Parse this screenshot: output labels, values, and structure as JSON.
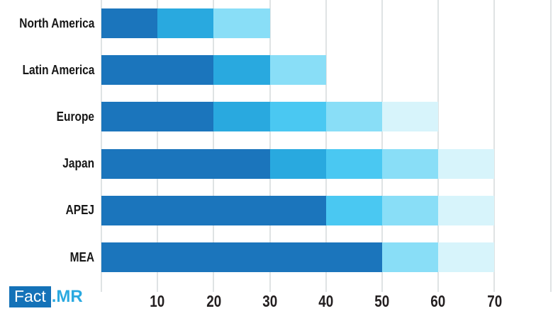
{
  "logo": {
    "brand_primary": "Fact",
    "brand_suffix": ".MR",
    "box_color": "#1472B8",
    "primary_text_color": "#FFFFFF",
    "suffix_color": "#2AA9E0"
  },
  "colors": {
    "gridline": "#DFE3E4",
    "tick_label": "#231F20",
    "category_label": "#161616",
    "bar_dark": "#1B75BC",
    "bar_medium": "#29A9DF",
    "bar_cyan": "#4AC8F2",
    "bar_light": "#89DEF7",
    "bar_palest": "#D7F4FB"
  },
  "chart_data": {
    "type": "bar",
    "orientation": "horizontal",
    "stacked": true,
    "title": "",
    "xlabel": "",
    "ylabel": "",
    "legend": null,
    "grid": true,
    "x_range": [
      0,
      80
    ],
    "categories": [
      "North America",
      "Latin America",
      "Europe",
      "Japan",
      "APEJ",
      "MEA"
    ],
    "totals": [
      30,
      40,
      60,
      70,
      70,
      70
    ],
    "bars": [
      {
        "category": "North America",
        "total": 30,
        "segments": [
          {
            "value": 10,
            "color": "#1B75BC"
          },
          {
            "value": 10,
            "color": "#29A9DF"
          },
          {
            "value": 10,
            "color": "#89DEF7"
          }
        ]
      },
      {
        "category": "Latin America",
        "total": 40,
        "segments": [
          {
            "value": 20,
            "color": "#1B75BC"
          },
          {
            "value": 10,
            "color": "#29A9DF"
          },
          {
            "value": 10,
            "color": "#89DEF7"
          }
        ]
      },
      {
        "category": "Europe",
        "total": 60,
        "segments": [
          {
            "value": 20,
            "color": "#1B75BC"
          },
          {
            "value": 10,
            "color": "#29A9DF"
          },
          {
            "value": 10,
            "color": "#4AC8F2"
          },
          {
            "value": 10,
            "color": "#89DEF7"
          },
          {
            "value": 10,
            "color": "#D7F4FB"
          }
        ]
      },
      {
        "category": "Japan",
        "total": 70,
        "segments": [
          {
            "value": 30,
            "color": "#1B75BC"
          },
          {
            "value": 10,
            "color": "#29A9DF"
          },
          {
            "value": 10,
            "color": "#4AC8F2"
          },
          {
            "value": 10,
            "color": "#89DEF7"
          },
          {
            "value": 10,
            "color": "#D7F4FB"
          }
        ]
      },
      {
        "category": "APEJ",
        "total": 70,
        "segments": [
          {
            "value": 40,
            "color": "#1B75BC"
          },
          {
            "value": 10,
            "color": "#4AC8F2"
          },
          {
            "value": 10,
            "color": "#89DEF7"
          },
          {
            "value": 10,
            "color": "#D7F4FB"
          }
        ]
      },
      {
        "category": "MEA",
        "total": 70,
        "segments": [
          {
            "value": 50,
            "color": "#1B75BC"
          },
          {
            "value": 10,
            "color": "#89DEF7"
          },
          {
            "value": 10,
            "color": "#D7F4FB"
          }
        ]
      }
    ],
    "x_axis": {
      "tick_values": [
        10,
        20,
        30,
        40,
        50,
        60,
        70
      ],
      "tick_labels": [
        "10",
        "20",
        "30",
        "40",
        "50",
        "60",
        "70"
      ],
      "gridline_values": [
        0,
        10,
        20,
        30,
        40,
        50,
        60,
        70,
        80
      ]
    }
  }
}
